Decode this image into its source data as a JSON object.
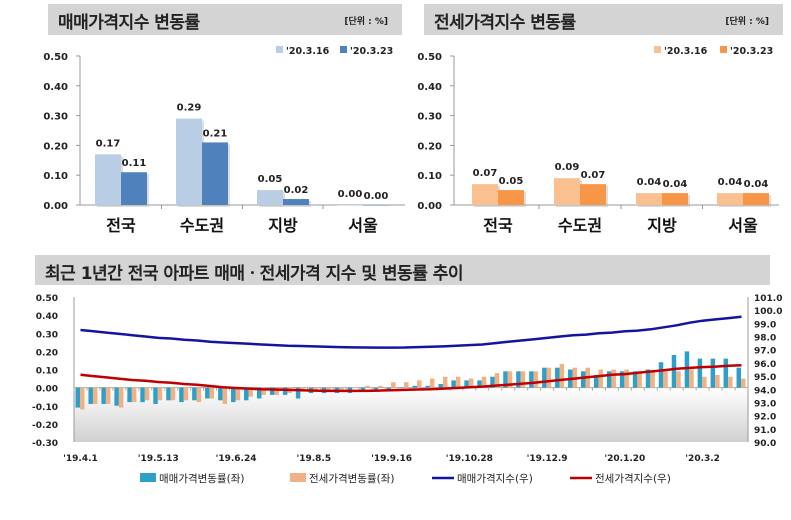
{
  "panels": {
    "sale_title": "매매가격지수 변동률",
    "jeonse_title": "전세가격지수 변동률",
    "unit": "[단위 : %]",
    "trend_title": "최근 1년간 전국 아파트 매매ㆍ전세가격 지수 및 변동률 추이"
  },
  "colors": {
    "sale_prev": "#b9cde5",
    "sale_curr": "#4f81bd",
    "jeonse_prev": "#fac090",
    "jeonse_curr": "#f79646",
    "sale_rate": "#2e9fc9",
    "jeonse_rate": "#f0b184",
    "sale_index": "#1414a0",
    "jeonse_index": "#c00000"
  },
  "chart_data": [
    {
      "type": "bar",
      "categories": [
        "전국",
        "수도권",
        "지방",
        "서울"
      ],
      "series": [
        {
          "name": "'20.3.16",
          "values": [
            0.17,
            0.29,
            0.05,
            0.0
          ]
        },
        {
          "name": "'20.3.23",
          "values": [
            0.11,
            0.21,
            0.02,
            0.0
          ]
        }
      ],
      "yticks": [
        "0.00",
        "0.10",
        "0.20",
        "0.30",
        "0.40",
        "0.50"
      ],
      "ylim": [
        0,
        0.5
      ],
      "legend": "top-right"
    },
    {
      "type": "bar",
      "categories": [
        "전국",
        "수도권",
        "지방",
        "서울"
      ],
      "series": [
        {
          "name": "'20.3.16",
          "values": [
            0.07,
            0.09,
            0.04,
            0.04
          ]
        },
        {
          "name": "'20.3.23",
          "values": [
            0.05,
            0.07,
            0.04,
            0.04
          ]
        }
      ],
      "yticks": [
        "0.00",
        "0.10",
        "0.20",
        "0.30",
        "0.40",
        "0.50"
      ],
      "ylim": [
        0,
        0.5
      ],
      "legend": "top-right"
    },
    {
      "type": "bar+line",
      "xticks": [
        "'19.4.1",
        "'19.5.13",
        "'19.6.24",
        "'19.8.5",
        "'19.9.16",
        "'19.10.28",
        "'19.12.9",
        "'20.1.20",
        "'20.3.2"
      ],
      "yticks_left": [
        "-0.30",
        "-0.20",
        "-0.10",
        "0.00",
        "0.10",
        "0.20",
        "0.30",
        "0.40",
        "0.50"
      ],
      "ylim_left": [
        -0.3,
        0.5
      ],
      "yticks_right": [
        "90.0",
        "91.0",
        "92.0",
        "93.0",
        "94.0",
        "95.0",
        "96.0",
        "97.0",
        "98.0",
        "99.0",
        "100.0",
        "101.0"
      ],
      "ylim_right": [
        90,
        101
      ],
      "legend": "bottom",
      "series": [
        {
          "name": "매매가격변동률(좌)",
          "type": "bar",
          "axis": "left",
          "values": [
            -0.11,
            -0.09,
            -0.09,
            -0.1,
            -0.08,
            -0.08,
            -0.09,
            -0.07,
            -0.08,
            -0.07,
            -0.06,
            -0.07,
            -0.08,
            -0.07,
            -0.06,
            -0.04,
            -0.04,
            -0.06,
            -0.03,
            -0.03,
            -0.03,
            -0.03,
            -0.02,
            -0.01,
            -0.01,
            0.0,
            0.01,
            0.01,
            0.02,
            0.04,
            0.04,
            0.04,
            0.06,
            0.09,
            0.09,
            0.09,
            0.11,
            0.11,
            0.1,
            0.09,
            0.07,
            0.09,
            0.09,
            0.09,
            0.1,
            0.14,
            0.18,
            0.2,
            0.16,
            0.16,
            0.16,
            0.11
          ]
        },
        {
          "name": "전세가격변동률(좌)",
          "type": "bar",
          "axis": "left",
          "values": [
            -0.12,
            -0.09,
            -0.09,
            -0.11,
            -0.08,
            -0.07,
            -0.07,
            -0.07,
            -0.07,
            -0.08,
            -0.06,
            -0.09,
            -0.07,
            -0.05,
            -0.04,
            -0.04,
            -0.03,
            -0.02,
            -0.02,
            -0.02,
            -0.01,
            0.0,
            0.01,
            0.01,
            0.03,
            0.03,
            0.04,
            0.05,
            0.06,
            0.06,
            0.05,
            0.06,
            0.08,
            0.09,
            0.09,
            0.09,
            0.11,
            0.13,
            0.11,
            0.11,
            0.1,
            0.1,
            0.1,
            0.09,
            0.09,
            0.09,
            0.09,
            0.1,
            0.06,
            0.07,
            0.06,
            0.05
          ]
        },
        {
          "name": "매매가격지수(우)",
          "type": "line",
          "axis": "right",
          "values": [
            98.5,
            98.4,
            98.3,
            98.2,
            98.1,
            98.0,
            97.9,
            97.85,
            97.75,
            97.7,
            97.6,
            97.55,
            97.5,
            97.45,
            97.4,
            97.35,
            97.3,
            97.28,
            97.25,
            97.22,
            97.2,
            97.18,
            97.17,
            97.16,
            97.16,
            97.17,
            97.2,
            97.22,
            97.25,
            97.3,
            97.35,
            97.4,
            97.5,
            97.6,
            97.7,
            97.8,
            97.9,
            98.0,
            98.1,
            98.15,
            98.25,
            98.3,
            98.4,
            98.45,
            98.55,
            98.7,
            98.85,
            99.05,
            99.2,
            99.3,
            99.4,
            99.5
          ]
        },
        {
          "name": "전세가격지수(우)",
          "type": "line",
          "axis": "right",
          "values": [
            95.1,
            95.0,
            94.9,
            94.8,
            94.7,
            94.65,
            94.55,
            94.5,
            94.4,
            94.35,
            94.25,
            94.15,
            94.1,
            94.05,
            94.0,
            93.98,
            93.95,
            93.92,
            93.9,
            93.88,
            93.88,
            93.88,
            93.88,
            93.9,
            93.92,
            93.95,
            93.98,
            94.0,
            94.05,
            94.1,
            94.15,
            94.2,
            94.28,
            94.35,
            94.42,
            94.5,
            94.6,
            94.7,
            94.8,
            94.9,
            95.0,
            95.1,
            95.15,
            95.25,
            95.35,
            95.45,
            95.55,
            95.62,
            95.68,
            95.72,
            95.78,
            95.82
          ]
        }
      ]
    }
  ]
}
